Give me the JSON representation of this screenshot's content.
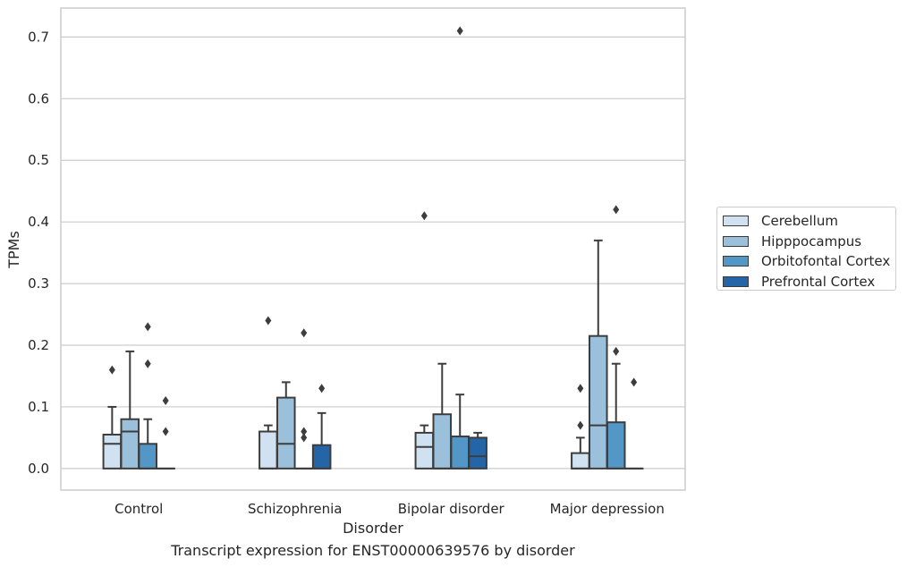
{
  "chart_data": {
    "type": "box",
    "xlabel": "Disorder",
    "ylabel": "TPMs",
    "caption": "Transcript expression for ENST00000639576 by disorder",
    "ylim": [
      -0.035,
      0.747
    ],
    "yticks": [
      0.0,
      0.1,
      0.2,
      0.3,
      0.4,
      0.5,
      0.6,
      0.7
    ],
    "ytick_labels": [
      "0.0",
      "0.1",
      "0.2",
      "0.3",
      "0.4",
      "0.5",
      "0.6",
      "0.7"
    ],
    "grid": "horizontal",
    "legend_position": "right",
    "categories": [
      "Control",
      "Schizophrenia",
      "Bipolar disorder",
      "Major depression"
    ],
    "series": [
      {
        "name": "Cerebellum",
        "color": "#d0e1f2",
        "boxes": [
          {
            "q1": 0.0,
            "median": 0.04,
            "q3": 0.055,
            "whisker_low": 0.0,
            "whisker_high": 0.1,
            "outliers": [
              0.16
            ]
          },
          {
            "q1": 0.0,
            "median": 0.0,
            "q3": 0.06,
            "whisker_low": 0.0,
            "whisker_high": 0.07,
            "outliers": [
              0.24
            ]
          },
          {
            "q1": 0.0,
            "median": 0.035,
            "q3": 0.058,
            "whisker_low": 0.0,
            "whisker_high": 0.07,
            "outliers": [
              0.41
            ]
          },
          {
            "q1": 0.0,
            "median": 0.0,
            "q3": 0.025,
            "whisker_low": 0.0,
            "whisker_high": 0.05,
            "outliers": [
              0.07,
              0.13
            ]
          }
        ]
      },
      {
        "name": "Hipppocampus",
        "color": "#9ac0db",
        "boxes": [
          {
            "q1": 0.0,
            "median": 0.06,
            "q3": 0.08,
            "whisker_low": 0.0,
            "whisker_high": 0.19,
            "outliers": []
          },
          {
            "q1": 0.0,
            "median": 0.04,
            "q3": 0.115,
            "whisker_low": 0.0,
            "whisker_high": 0.14,
            "outliers": []
          },
          {
            "q1": 0.0,
            "median": 0.0,
            "q3": 0.088,
            "whisker_low": 0.0,
            "whisker_high": 0.17,
            "outliers": []
          },
          {
            "q1": 0.0,
            "median": 0.07,
            "q3": 0.215,
            "whisker_low": 0.0,
            "whisker_high": 0.37,
            "outliers": []
          }
        ]
      },
      {
        "name": "Orbitofontal Cortex",
        "color": "#5397c6",
        "boxes": [
          {
            "q1": 0.0,
            "median": 0.0,
            "q3": 0.04,
            "whisker_low": 0.0,
            "whisker_high": 0.08,
            "outliers": [
              0.17,
              0.23
            ]
          },
          {
            "q1": 0.0,
            "median": 0.0,
            "q3": 0.0,
            "whisker_low": 0.0,
            "whisker_high": 0.0,
            "outliers": [
              0.05,
              0.06,
              0.22
            ]
          },
          {
            "q1": 0.0,
            "median": 0.0,
            "q3": 0.052,
            "whisker_low": 0.0,
            "whisker_high": 0.12,
            "outliers": [
              0.71
            ]
          },
          {
            "q1": 0.0,
            "median": 0.0,
            "q3": 0.075,
            "whisker_low": 0.0,
            "whisker_high": 0.17,
            "outliers": [
              0.19,
              0.42
            ]
          }
        ]
      },
      {
        "name": "Prefrontal Cortex",
        "color": "#2465a8",
        "boxes": [
          {
            "q1": 0.0,
            "median": 0.0,
            "q3": 0.0,
            "whisker_low": 0.0,
            "whisker_high": 0.0,
            "outliers": [
              0.06,
              0.11
            ]
          },
          {
            "q1": 0.0,
            "median": 0.0,
            "q3": 0.038,
            "whisker_low": 0.0,
            "whisker_high": 0.09,
            "outliers": [
              0.13
            ]
          },
          {
            "q1": 0.0,
            "median": 0.02,
            "q3": 0.05,
            "whisker_low": 0.0,
            "whisker_high": 0.058,
            "outliers": []
          },
          {
            "q1": 0.0,
            "median": 0.0,
            "q3": 0.0,
            "whisker_low": 0.0,
            "whisker_high": 0.0,
            "outliers": [
              0.14
            ]
          }
        ]
      }
    ]
  }
}
